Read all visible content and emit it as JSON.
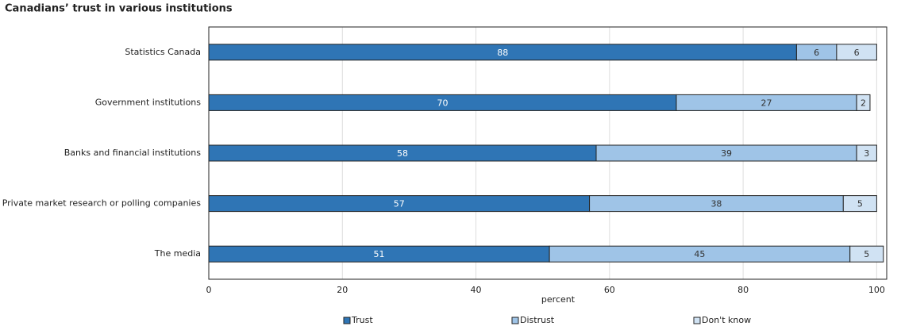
{
  "chart_data": {
    "type": "stacked-bar-horizontal",
    "title": "Canadians’ trust in various institutions",
    "categories": [
      "Statistics Canada",
      "Government institutions",
      "Banks and financial institutions",
      "Private market research or polling companies",
      "The media"
    ],
    "series": [
      {
        "name": "Trust",
        "color": "#2f75b5",
        "values": [
          88,
          70,
          58,
          57,
          51
        ]
      },
      {
        "name": "Distrust",
        "color": "#9fc4e7",
        "values": [
          6,
          27,
          39,
          38,
          45
        ]
      },
      {
        "name": "Don't know",
        "color": "#d0e2f3",
        "values": [
          6,
          2,
          3,
          5,
          5
        ]
      }
    ],
    "xlabel": "percent",
    "xlim": [
      0,
      101.5
    ],
    "xticks": [
      0,
      20,
      40,
      60,
      80,
      100
    ],
    "grid": true,
    "legend": "bottom"
  }
}
